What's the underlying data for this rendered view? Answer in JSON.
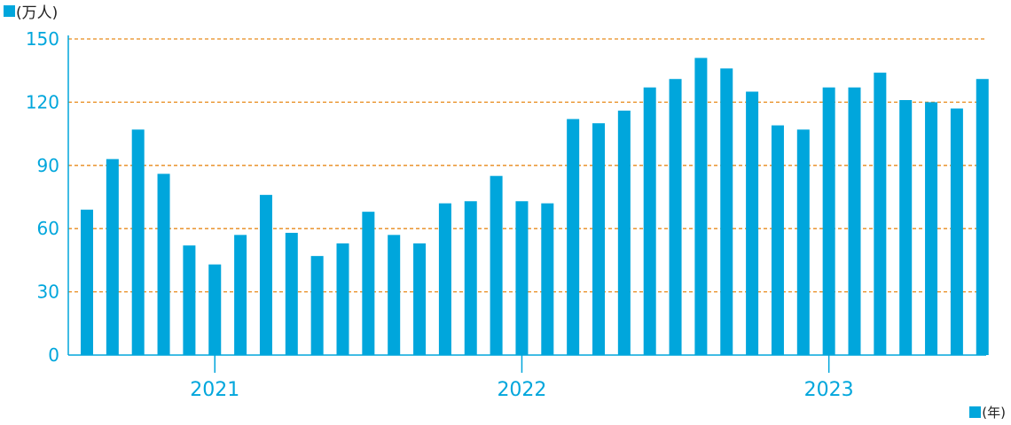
{
  "chart_data": {
    "type": "bar",
    "y_unit_label": "(万人)",
    "x_unit_label": "(年)",
    "ylim": [
      0,
      150
    ],
    "yticks": [
      0,
      30,
      60,
      90,
      120,
      150
    ],
    "grid": "horizontal dashed",
    "colors": {
      "bar": "#00a6dc",
      "grid": "#e88a1a",
      "axis": "#00a6dc",
      "tick_text": "#00a6dc",
      "year_text": "#00a6dc"
    },
    "year_labels": [
      {
        "label": "2021",
        "index": 5
      },
      {
        "label": "2022",
        "index": 17
      },
      {
        "label": "2023",
        "index": 29
      }
    ],
    "values": [
      69,
      93,
      107,
      86,
      52,
      43,
      57,
      76,
      58,
      47,
      53,
      68,
      57,
      53,
      72,
      73,
      85,
      73,
      72,
      112,
      110,
      116,
      127,
      131,
      141,
      136,
      125,
      109,
      107,
      127,
      127,
      134,
      121,
      120,
      117,
      131
    ]
  }
}
